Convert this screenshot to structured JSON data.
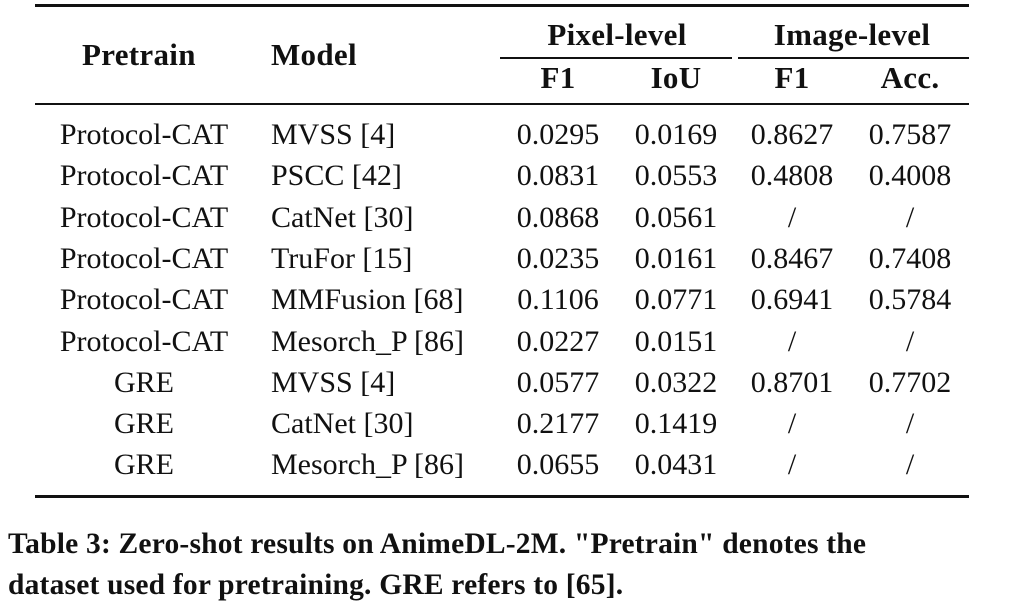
{
  "table": {
    "headers": {
      "pretrain": "Pretrain",
      "model": "Model",
      "group_pixel": "Pixel-level",
      "group_image": "Image-level",
      "pixel_f1": "F1",
      "pixel_iou": "IoU",
      "image_f1": "F1",
      "image_acc": "Acc."
    },
    "rows": [
      {
        "pretrain": "Protocol-CAT",
        "model": "MVSS [4]",
        "pixel_f1": "0.0295",
        "pixel_iou": "0.0169",
        "image_f1": "0.8627",
        "image_acc": "0.7587"
      },
      {
        "pretrain": "Protocol-CAT",
        "model": "PSCC [42]",
        "pixel_f1": "0.0831",
        "pixel_iou": "0.0553",
        "image_f1": "0.4808",
        "image_acc": "0.4008"
      },
      {
        "pretrain": "Protocol-CAT",
        "model": "CatNet [30]",
        "pixel_f1": "0.0868",
        "pixel_iou": "0.0561",
        "image_f1": "/",
        "image_acc": "/"
      },
      {
        "pretrain": "Protocol-CAT",
        "model": "TruFor [15]",
        "pixel_f1": "0.0235",
        "pixel_iou": "0.0161",
        "image_f1": "0.8467",
        "image_acc": "0.7408"
      },
      {
        "pretrain": "Protocol-CAT",
        "model": "MMFusion [68]",
        "pixel_f1": "0.1106",
        "pixel_iou": "0.0771",
        "image_f1": "0.6941",
        "image_acc": "0.5784"
      },
      {
        "pretrain": "Protocol-CAT",
        "model": "Mesorch_P [86]",
        "pixel_f1": "0.0227",
        "pixel_iou": "0.0151",
        "image_f1": "/",
        "image_acc": "/"
      },
      {
        "pretrain": "GRE",
        "model": "MVSS [4]",
        "pixel_f1": "0.0577",
        "pixel_iou": "0.0322",
        "image_f1": "0.8701",
        "image_acc": "0.7702"
      },
      {
        "pretrain": "GRE",
        "model": "CatNet [30]",
        "pixel_f1": "0.2177",
        "pixel_iou": "0.1419",
        "image_f1": "/",
        "image_acc": "/"
      },
      {
        "pretrain": "GRE",
        "model": "Mesorch_P [86]",
        "pixel_f1": "0.0655",
        "pixel_iou": "0.0431",
        "image_f1": "/",
        "image_acc": "/"
      }
    ]
  },
  "caption": {
    "line1": "Table 3: Zero-shot results on AnimeDL-2M. \"Pretrain\" denotes the",
    "line2": "dataset used for pretraining. GRE refers to [65]."
  }
}
